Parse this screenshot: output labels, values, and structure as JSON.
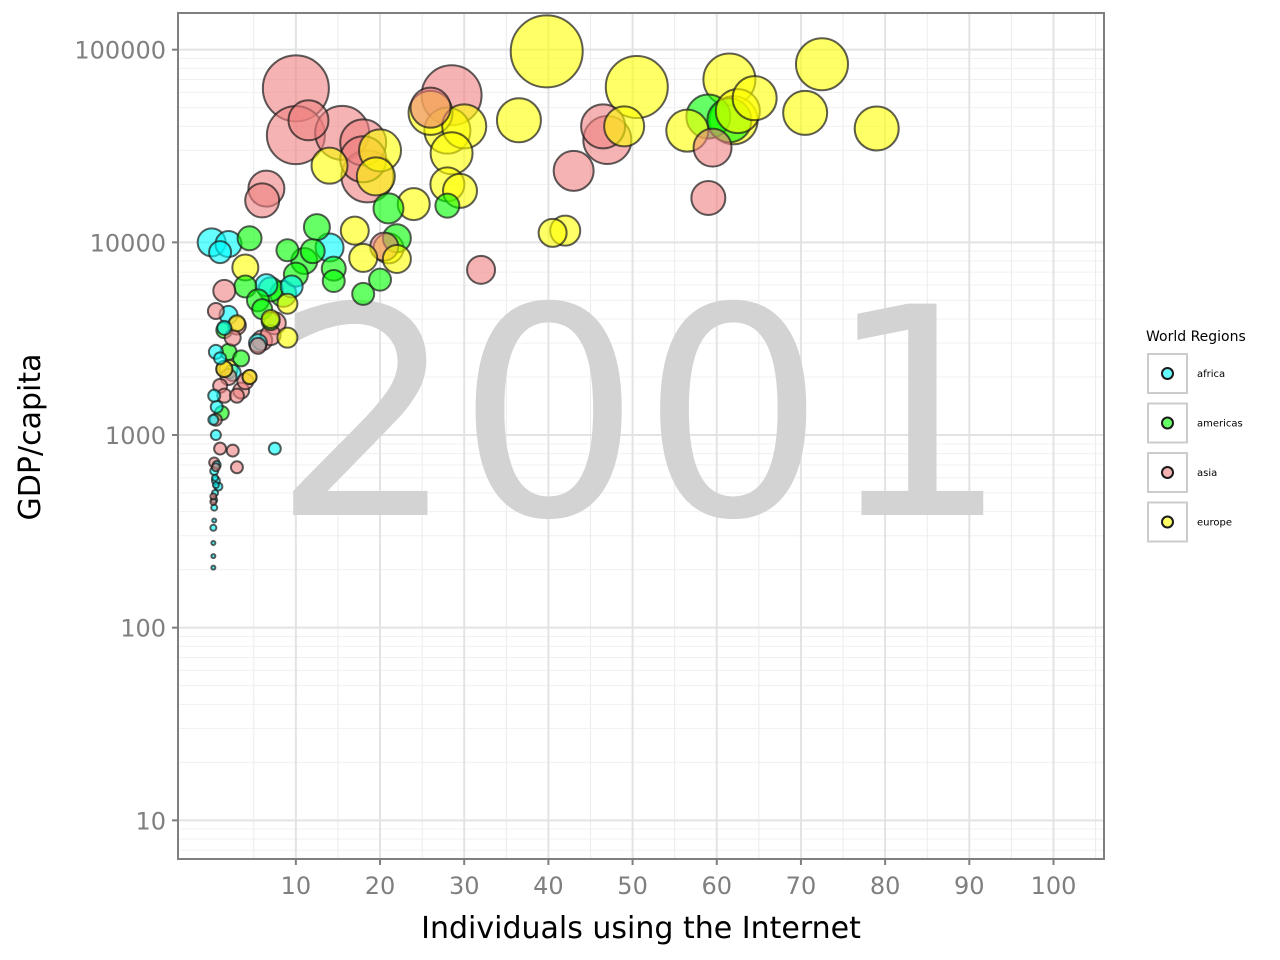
{
  "chart_data": {
    "type": "scatter",
    "annotation": "2001",
    "xlabel": "Individuals using the Internet",
    "ylabel": "GDP/capita",
    "x_ticks": [
      10,
      20,
      30,
      40,
      50,
      60,
      70,
      80,
      90,
      100
    ],
    "y_ticks": [
      10,
      100,
      1000,
      10000,
      100000
    ],
    "y_tick_labels": [
      "10",
      "100",
      "1000",
      "10000",
      "100000"
    ],
    "xlim": [
      -4,
      106
    ],
    "ylim": [
      6.3,
      155000
    ],
    "y_scale": "log",
    "grid": true,
    "legend": {
      "title": "World Regions",
      "placement": "right",
      "entries": [
        {
          "label": "africa",
          "color": "#00ffff"
        },
        {
          "label": "americas",
          "color": "#00ff00"
        },
        {
          "label": "asia",
          "color": "#f08080"
        },
        {
          "label": "europe",
          "color": "#ffff00"
        }
      ]
    },
    "colors": {
      "africa": "#00ffff",
      "americas": "#00ff00",
      "asia": "#f08080",
      "europe": "#ffff00"
    },
    "series": [
      {
        "name": "africa",
        "points": [
          [
            0.2,
            205,
            2
          ],
          [
            0.2,
            235,
            2
          ],
          [
            0.2,
            275,
            2
          ],
          [
            0.2,
            330,
            3
          ],
          [
            0.3,
            360,
            2
          ],
          [
            0.3,
            420,
            3
          ],
          [
            0.3,
            460,
            3
          ],
          [
            0.4,
            500,
            3
          ],
          [
            0.5,
            550,
            3
          ],
          [
            0.8,
            540,
            4
          ],
          [
            0.5,
            580,
            4
          ],
          [
            0.4,
            600,
            3
          ],
          [
            0.3,
            650,
            4
          ],
          [
            0.6,
            700,
            4
          ],
          [
            0.5,
            1000,
            5
          ],
          [
            0.2,
            1200,
            5
          ],
          [
            0.6,
            1400,
            6
          ],
          [
            0.3,
            1600,
            6
          ],
          [
            0.5,
            2700,
            7
          ],
          [
            1.0,
            2500,
            6
          ],
          [
            1.5,
            3600,
            7
          ],
          [
            2.0,
            4200,
            9
          ],
          [
            2.5,
            2100,
            8
          ],
          [
            1.0,
            8900,
            11
          ],
          [
            2.0,
            9800,
            13
          ],
          [
            5.5,
            3000,
            9
          ],
          [
            6.5,
            6000,
            11
          ],
          [
            9.5,
            5900,
            11
          ],
          [
            14.0,
            9400,
            14
          ],
          [
            7.5,
            850,
            6
          ],
          [
            0.0,
            10000,
            14
          ]
        ]
      },
      {
        "name": "americas",
        "points": [
          [
            1.2,
            1300,
            7
          ],
          [
            1.5,
            3500,
            8
          ],
          [
            2.0,
            2700,
            8
          ],
          [
            3.5,
            2500,
            8
          ],
          [
            4.0,
            5900,
            11
          ],
          [
            5.5,
            5000,
            11
          ],
          [
            6.0,
            4500,
            10
          ],
          [
            7.0,
            5700,
            12
          ],
          [
            8.5,
            5400,
            13
          ],
          [
            9.0,
            9100,
            11
          ],
          [
            10.0,
            6800,
            12
          ],
          [
            11.0,
            8000,
            13
          ],
          [
            12.0,
            9000,
            12
          ],
          [
            12.5,
            12000,
            13
          ],
          [
            14.5,
            7300,
            12
          ],
          [
            14.5,
            6300,
            11
          ],
          [
            18.0,
            5400,
            11
          ],
          [
            20.0,
            6400,
            11
          ],
          [
            21.0,
            15000,
            15
          ],
          [
            22.0,
            10500,
            14
          ],
          [
            28.0,
            15500,
            12
          ],
          [
            59.0,
            45000,
            22
          ],
          [
            61.5,
            43000,
            22
          ],
          [
            4.5,
            10500,
            12
          ],
          [
            7.0,
            3900,
            9
          ]
        ]
      },
      {
        "name": "asia",
        "points": [
          [
            0.2,
            450,
            3
          ],
          [
            0.2,
            480,
            3
          ],
          [
            0.5,
            680,
            4
          ],
          [
            0.3,
            720,
            5
          ],
          [
            2.5,
            830,
            6
          ],
          [
            3.0,
            680,
            6
          ],
          [
            1.0,
            850,
            6
          ],
          [
            0.5,
            1200,
            6
          ],
          [
            1.0,
            1800,
            7
          ],
          [
            1.5,
            1600,
            7
          ],
          [
            2.0,
            2000,
            8
          ],
          [
            1.5,
            2200,
            8
          ],
          [
            2.5,
            3200,
            8
          ],
          [
            3.0,
            1600,
            7
          ],
          [
            3.5,
            1700,
            8
          ],
          [
            4.0,
            1900,
            8
          ],
          [
            4.5,
            2000,
            7
          ],
          [
            5.5,
            2900,
            8
          ],
          [
            0.5,
            4400,
            8
          ],
          [
            1.5,
            5600,
            11
          ],
          [
            3.0,
            3700,
            9
          ],
          [
            6.0,
            3100,
            10
          ],
          [
            7.0,
            3300,
            10
          ],
          [
            7.5,
            3800,
            11
          ],
          [
            6.0,
            16500,
            17
          ],
          [
            6.5,
            19000,
            18
          ],
          [
            10.0,
            63000,
            33
          ],
          [
            10.0,
            36000,
            29
          ],
          [
            11.5,
            43000,
            20
          ],
          [
            15.5,
            37000,
            27
          ],
          [
            18.0,
            33000,
            23
          ],
          [
            18.5,
            22000,
            26
          ],
          [
            18.0,
            27000,
            23
          ],
          [
            20.5,
            9500,
            14
          ],
          [
            28.5,
            58000,
            30
          ],
          [
            32.0,
            7200,
            14
          ],
          [
            43.0,
            23500,
            20
          ],
          [
            46.5,
            40000,
            22
          ],
          [
            47.0,
            34000,
            24
          ],
          [
            59.0,
            17000,
            17
          ],
          [
            59.5,
            31000,
            19
          ],
          [
            26.0,
            50000,
            20
          ]
        ]
      },
      {
        "name": "europe",
        "points": [
          [
            1.5,
            2200,
            8
          ],
          [
            2.0,
            2200,
            9
          ],
          [
            4.5,
            2000,
            7
          ],
          [
            3.0,
            3800,
            8
          ],
          [
            4.0,
            7400,
            13
          ],
          [
            7.0,
            4000,
            9
          ],
          [
            9.0,
            3200,
            10
          ],
          [
            9.0,
            4800,
            10
          ],
          [
            14.0,
            25000,
            18
          ],
          [
            17.0,
            11500,
            14
          ],
          [
            18.0,
            8300,
            14
          ],
          [
            20.0,
            30000,
            21
          ],
          [
            19.5,
            22000,
            19
          ],
          [
            21.0,
            9300,
            15
          ],
          [
            22.0,
            8200,
            14
          ],
          [
            24.0,
            15800,
            16
          ],
          [
            26.0,
            47000,
            22
          ],
          [
            28.0,
            38000,
            23
          ],
          [
            28.5,
            29000,
            21
          ],
          [
            28.0,
            20000,
            17
          ],
          [
            29.5,
            18500,
            17
          ],
          [
            30.0,
            40000,
            22
          ],
          [
            36.5,
            43000,
            22
          ],
          [
            39.8,
            98000,
            36
          ],
          [
            40.5,
            11200,
            14
          ],
          [
            42.0,
            11500,
            15
          ],
          [
            49.0,
            40000,
            20
          ],
          [
            50.5,
            64000,
            31
          ],
          [
            56.5,
            38000,
            21
          ],
          [
            61.5,
            70000,
            26
          ],
          [
            62.5,
            48000,
            22
          ],
          [
            62.0,
            43000,
            24
          ],
          [
            64.5,
            56000,
            22
          ],
          [
            70.5,
            47000,
            22
          ],
          [
            72.5,
            84000,
            26
          ],
          [
            79.0,
            39000,
            22
          ]
        ]
      }
    ]
  }
}
